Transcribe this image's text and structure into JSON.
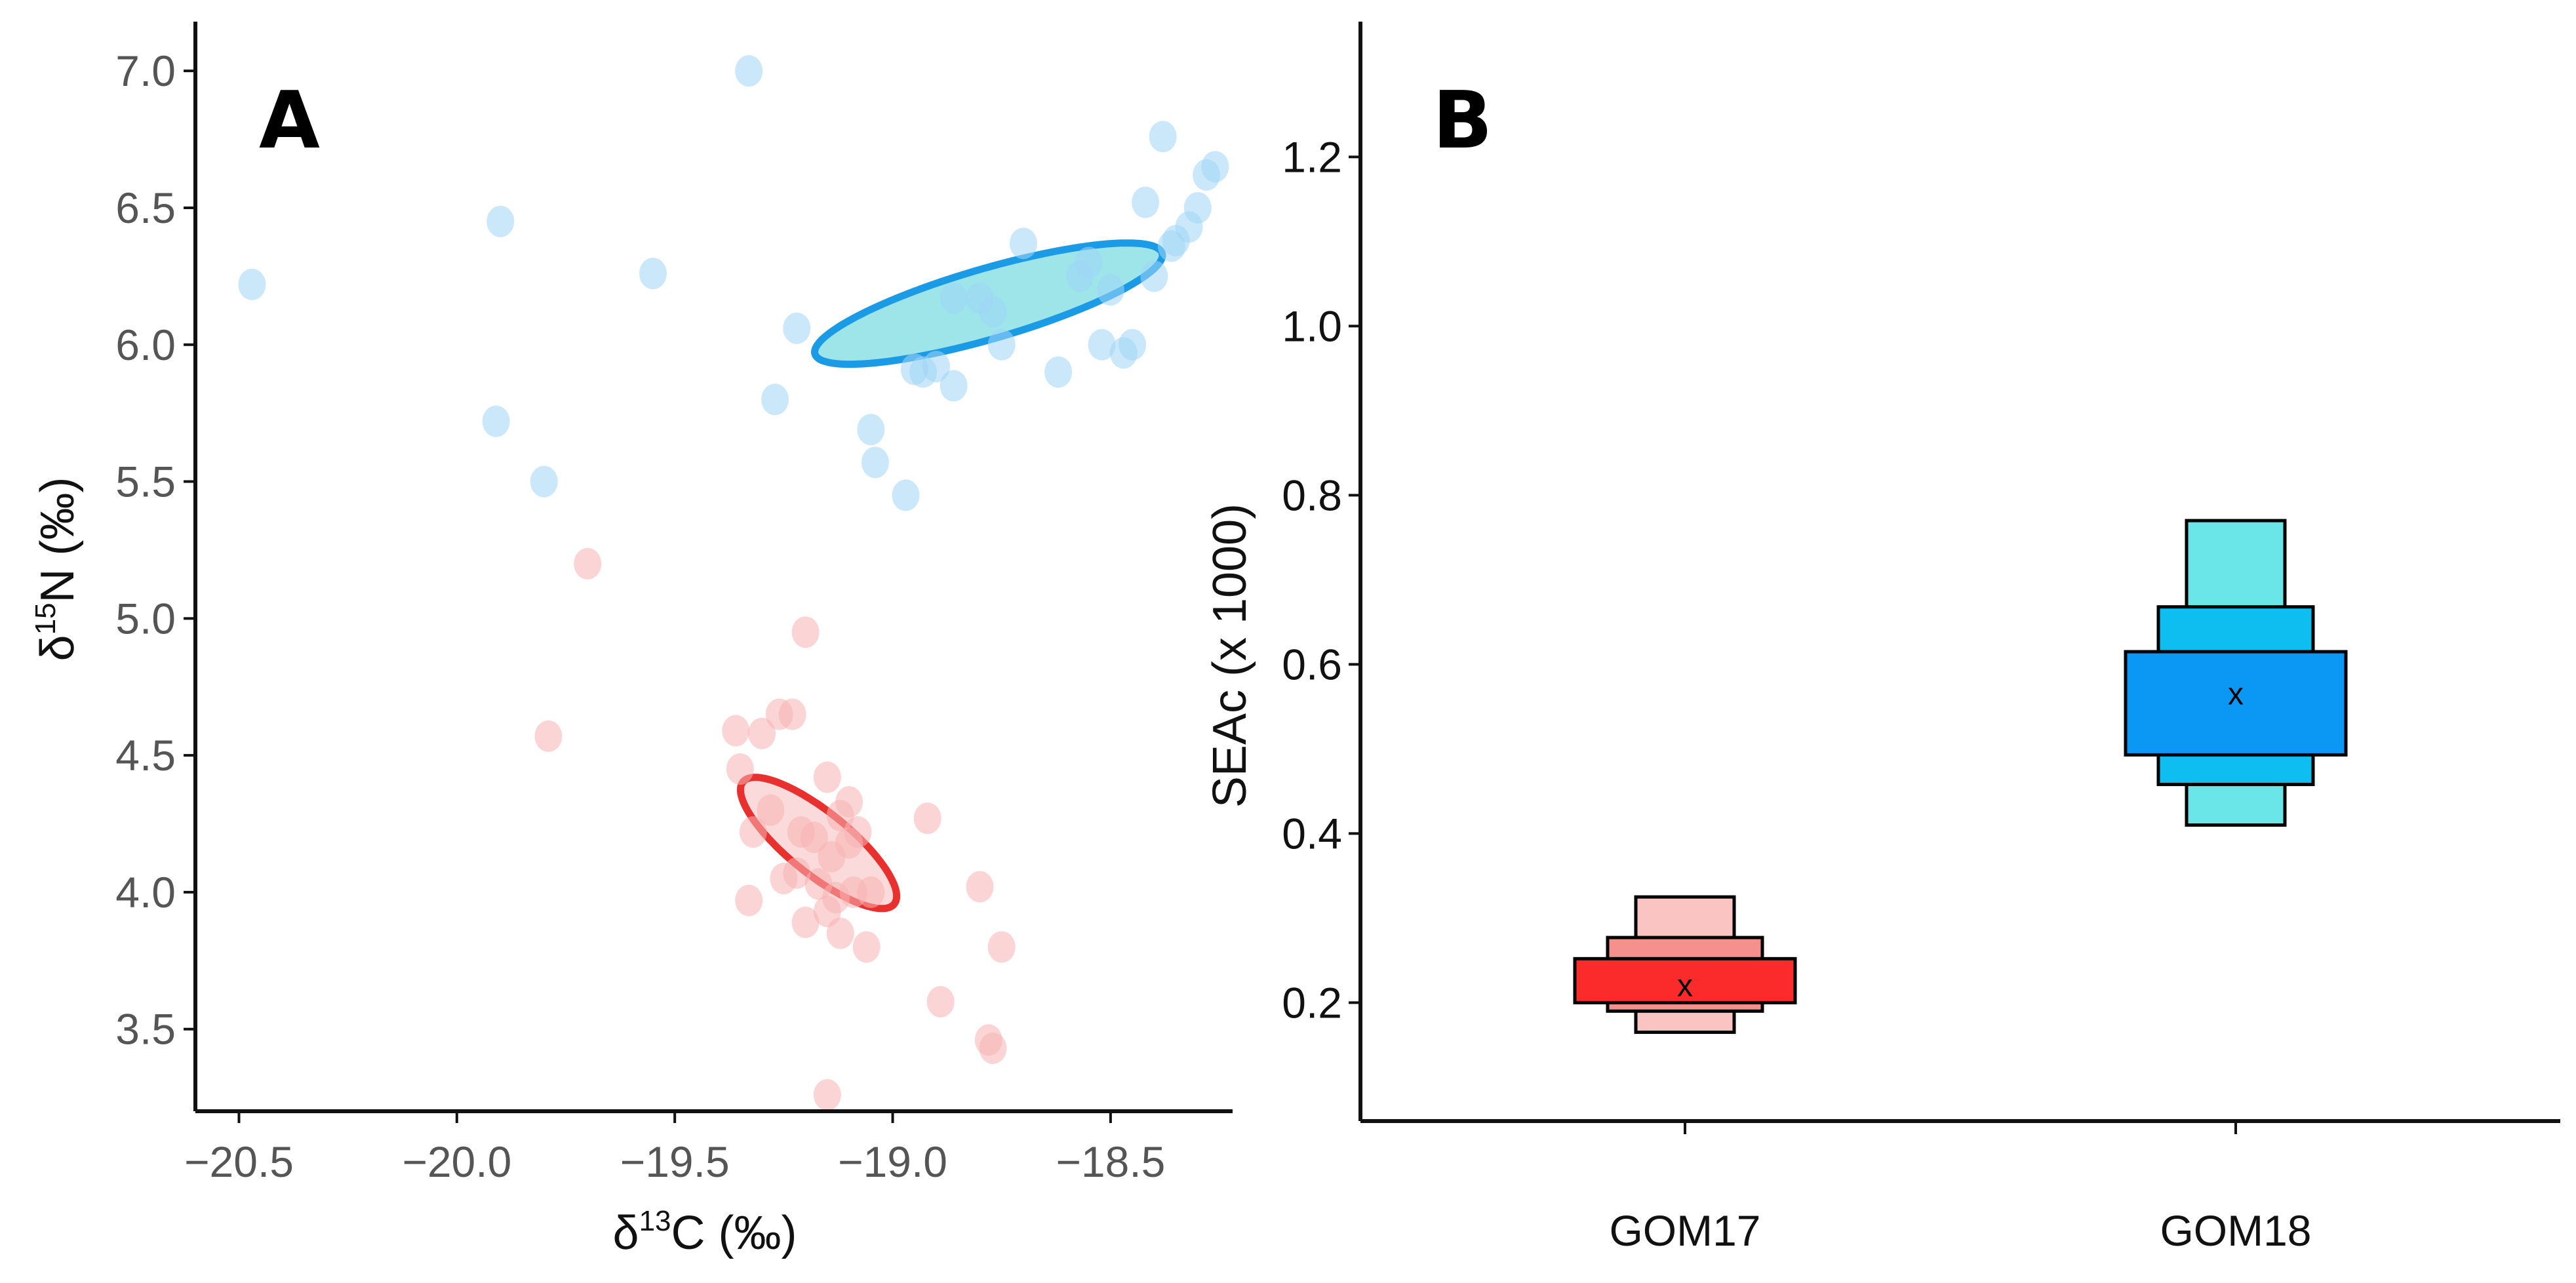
{
  "figure": {
    "panel_a_label": "A",
    "panel_b_label": "B"
  },
  "chart_data": [
    {
      "type": "scatter",
      "panel": "A",
      "xlabel": "δ13C (‰)",
      "xlabel_parts": {
        "prefix": "δ",
        "sup": "13",
        "rest": "C (‰)"
      },
      "ylabel": "δ15N (‰)",
      "ylabel_parts": {
        "prefix": "δ",
        "sup": "15",
        "rest": "N (‰)"
      },
      "xlim": [
        -20.6,
        -18.22
      ],
      "ylim": [
        3.2,
        7.18
      ],
      "xticks": [
        -20.5,
        -20.0,
        -19.5,
        -19.0,
        -18.5
      ],
      "xtick_labels": [
        "−20.5",
        "−20.0",
        "−19.5",
        "−19.0",
        "−18.5"
      ],
      "yticks": [
        3.5,
        4.0,
        4.5,
        5.0,
        5.5,
        6.0,
        6.5,
        7.0
      ],
      "ytick_labels": [
        "3.5",
        "4.0",
        "4.5",
        "5.0",
        "5.5",
        "6.0",
        "6.5",
        "7.0"
      ],
      "series": [
        {
          "name": "GOM18",
          "point_color": "#9fd6f5",
          "ellipse": {
            "cx": -18.78,
            "cy": 6.15,
            "semi_major": 0.8,
            "semi_minor": 0.22,
            "angle_deg": 26,
            "fill": "#4fd0d8",
            "stroke": "#1b9be6"
          },
          "x": [
            -20.47,
            -19.9,
            -19.55,
            -19.33,
            -19.22,
            -19.27,
            -19.91,
            -19.8,
            -19.04,
            -19.05,
            -18.97,
            -18.93,
            -18.9,
            -18.86,
            -18.8,
            -18.77,
            -18.75,
            -18.7,
            -18.62,
            -18.57,
            -18.55,
            -18.5,
            -18.47,
            -18.45,
            -18.42,
            -18.38,
            -18.36,
            -18.32,
            -18.3,
            -18.28,
            -18.26,
            -18.4,
            -18.35,
            -18.52,
            -18.86,
            -18.95
          ],
          "y": [
            6.22,
            6.45,
            6.26,
            7.0,
            6.06,
            5.8,
            5.72,
            5.5,
            5.57,
            5.69,
            5.45,
            5.9,
            5.92,
            5.85,
            6.17,
            6.12,
            6.0,
            6.37,
            5.9,
            6.25,
            6.3,
            6.2,
            5.97,
            6.0,
            6.52,
            6.76,
            6.36,
            6.43,
            6.5,
            6.62,
            6.65,
            6.25,
            6.38,
            6.0,
            6.17,
            5.91
          ]
        },
        {
          "name": "GOM17",
          "point_color": "#f8b3b3",
          "ellipse": {
            "cx": -19.17,
            "cy": 4.18,
            "semi_major": 0.52,
            "semi_minor": 0.16,
            "angle_deg": -55,
            "fill": "#f6bcbc",
            "stroke": "#e8302e"
          },
          "x": [
            -19.7,
            -19.79,
            -19.2,
            -19.3,
            -19.36,
            -19.35,
            -19.32,
            -19.26,
            -19.23,
            -19.28,
            -19.21,
            -19.18,
            -19.15,
            -19.14,
            -19.12,
            -19.1,
            -19.08,
            -19.05,
            -19.2,
            -19.22,
            -19.17,
            -19.13,
            -19.09,
            -19.12,
            -19.15,
            -18.92,
            -18.8,
            -18.75,
            -18.89,
            -18.78,
            -18.77,
            -19.15,
            -19.25,
            -19.33,
            -19.06,
            -19.1
          ],
          "y": [
            5.2,
            4.57,
            4.95,
            4.58,
            4.59,
            4.45,
            4.22,
            4.65,
            4.65,
            4.3,
            4.22,
            4.2,
            4.42,
            4.13,
            4.28,
            4.33,
            4.22,
            4.0,
            3.89,
            4.07,
            4.03,
            3.98,
            4.0,
            3.85,
            3.93,
            4.27,
            4.02,
            3.8,
            3.6,
            3.46,
            3.43,
            3.26,
            4.05,
            3.97,
            3.8,
            4.18
          ]
        }
      ]
    },
    {
      "type": "bar",
      "subtype": "density-boxplot",
      "panel": "B",
      "ylabel": "SEAc (x 1000)",
      "categories": [
        "GOM17",
        "GOM18"
      ],
      "ylim": [
        0.06,
        1.36
      ],
      "yticks": [
        0.2,
        0.4,
        0.6,
        0.8,
        1.0,
        1.2
      ],
      "ytick_labels": [
        "0.2",
        "0.4",
        "0.6",
        "0.8",
        "1.0",
        "1.2"
      ],
      "mean_marker": "x",
      "series": [
        {
          "name": "GOM17",
          "mean": 0.22,
          "credible_intervals": [
            {
              "level": 95,
              "low": 0.165,
              "high": 0.325,
              "color": "#f9c4c2"
            },
            {
              "level": 75,
              "low": 0.19,
              "high": 0.277,
              "color": "#f5908d"
            },
            {
              "level": 50,
              "low": 0.2,
              "high": 0.252,
              "color": "#fc2b2b"
            }
          ]
        },
        {
          "name": "GOM18",
          "mean": 0.565,
          "credible_intervals": [
            {
              "level": 95,
              "low": 0.41,
              "high": 0.77,
              "color": "#6ae6e9"
            },
            {
              "level": 75,
              "low": 0.458,
              "high": 0.668,
              "color": "#0fbef1"
            },
            {
              "level": 50,
              "low": 0.493,
              "high": 0.615,
              "color": "#0a98f4"
            }
          ]
        }
      ]
    }
  ]
}
